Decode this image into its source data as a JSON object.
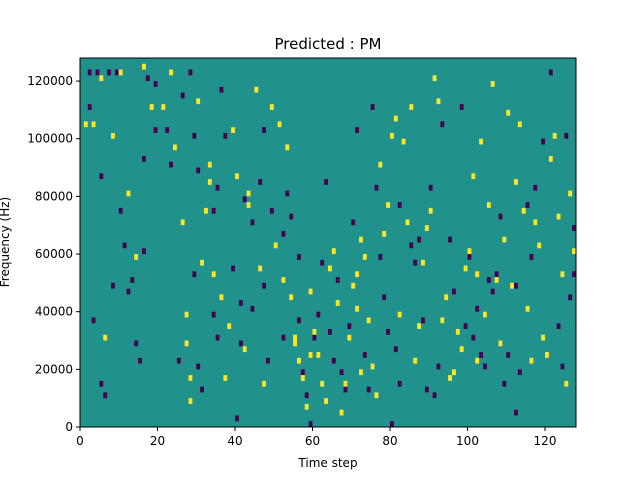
{
  "chart_data": {
    "type": "heatmap",
    "title": "Predicted : PM",
    "xlabel": "Time step",
    "ylabel": "Frequency (Hz)",
    "xlim": [
      0,
      128
    ],
    "ylim": [
      0,
      128000
    ],
    "xticks": [
      0,
      20,
      40,
      60,
      80,
      100,
      120
    ],
    "yticks": [
      0,
      20000,
      40000,
      60000,
      80000,
      100000,
      120000
    ],
    "xtick_labels": [
      "0",
      "20",
      "40",
      "60",
      "80",
      "100",
      "120"
    ],
    "ytick_labels": [
      "0",
      "20000",
      "40000",
      "60000",
      "80000",
      "100000",
      "120000"
    ],
    "time_steps": 128,
    "freq_bins": 64,
    "bin_height_hz": 2000,
    "colors": {
      "background": "#21918c",
      "low": "#440154",
      "high": "#fde725"
    },
    "cells_low": [
      [
        2,
        123000
      ],
      [
        2,
        111000
      ],
      [
        4,
        123000
      ],
      [
        5,
        15000
      ],
      [
        6,
        11000
      ],
      [
        7,
        123000
      ],
      [
        9,
        123000
      ],
      [
        5,
        87000
      ],
      [
        10,
        75000
      ],
      [
        11,
        63000
      ],
      [
        12,
        47000
      ],
      [
        14,
        29000
      ],
      [
        3,
        37000
      ],
      [
        8,
        49000
      ],
      [
        13,
        51000
      ],
      [
        15,
        23000
      ],
      [
        16,
        61000
      ],
      [
        16,
        93000
      ],
      [
        17,
        121000
      ],
      [
        19,
        119000
      ],
      [
        19,
        103000
      ],
      [
        22,
        103000
      ],
      [
        23,
        91000
      ],
      [
        26,
        115000
      ],
      [
        28,
        123000
      ],
      [
        29,
        101000
      ],
      [
        30,
        89000
      ],
      [
        29,
        53000
      ],
      [
        30,
        21000
      ],
      [
        25,
        23000
      ],
      [
        31,
        13000
      ],
      [
        34,
        75000
      ],
      [
        35,
        83000
      ],
      [
        36,
        117000
      ],
      [
        34,
        39000
      ],
      [
        37,
        101000
      ],
      [
        39,
        55000
      ],
      [
        41,
        43000
      ],
      [
        41,
        29000
      ],
      [
        42,
        79000
      ],
      [
        44,
        71000
      ],
      [
        44,
        41000
      ],
      [
        46,
        85000
      ],
      [
        47,
        103000
      ],
      [
        47,
        49000
      ],
      [
        48,
        23000
      ],
      [
        52,
        67000
      ],
      [
        53,
        81000
      ],
      [
        54,
        73000
      ],
      [
        56,
        59000
      ],
      [
        56,
        37000
      ],
      [
        57,
        19000
      ],
      [
        58,
        11000
      ],
      [
        59,
        1000
      ],
      [
        60,
        31000
      ],
      [
        61,
        39000
      ],
      [
        62,
        57000
      ],
      [
        63,
        85000
      ],
      [
        64,
        33000
      ],
      [
        65,
        23000
      ],
      [
        66,
        51000
      ],
      [
        67,
        19000
      ],
      [
        68,
        13000
      ],
      [
        69,
        35000
      ],
      [
        70,
        71000
      ],
      [
        71,
        103000
      ],
      [
        73,
        25000
      ],
      [
        75,
        111000
      ],
      [
        76,
        83000
      ],
      [
        77,
        59000
      ],
      [
        78,
        45000
      ],
      [
        79,
        33000
      ],
      [
        81,
        27000
      ],
      [
        82,
        15000
      ],
      [
        82,
        77000
      ],
      [
        85,
        63000
      ],
      [
        86,
        57000
      ],
      [
        87,
        65000
      ],
      [
        88,
        37000
      ],
      [
        90,
        83000
      ],
      [
        91,
        11000
      ],
      [
        92,
        21000
      ],
      [
        93,
        105000
      ],
      [
        95,
        65000
      ],
      [
        96,
        47000
      ],
      [
        98,
        111000
      ],
      [
        99,
        35000
      ],
      [
        100,
        59000
      ],
      [
        101,
        31000
      ],
      [
        102,
        41000
      ],
      [
        103,
        25000
      ],
      [
        104,
        21000
      ],
      [
        105,
        51000
      ],
      [
        106,
        47000
      ],
      [
        107,
        53000
      ],
      [
        108,
        73000
      ],
      [
        110,
        25000
      ],
      [
        112,
        49000
      ],
      [
        113,
        19000
      ],
      [
        115,
        77000
      ],
      [
        116,
        59000
      ],
      [
        117,
        83000
      ],
      [
        119,
        99000
      ],
      [
        121,
        123000
      ],
      [
        123,
        35000
      ],
      [
        124,
        21000
      ],
      [
        125,
        101000
      ],
      [
        126,
        45000
      ],
      [
        127,
        69000
      ],
      [
        127,
        53000
      ],
      [
        49,
        75000
      ],
      [
        52,
        31000
      ],
      [
        40,
        3000
      ],
      [
        80,
        1000
      ],
      [
        89,
        13000
      ],
      [
        109,
        15000
      ],
      [
        112,
        5000
      ],
      [
        74,
        13000
      ],
      [
        35,
        31000
      ]
    ],
    "cells_high": [
      [
        1,
        105000
      ],
      [
        3,
        105000
      ],
      [
        5,
        121000
      ],
      [
        6,
        31000
      ],
      [
        8,
        101000
      ],
      [
        10,
        123000
      ],
      [
        12,
        81000
      ],
      [
        14,
        59000
      ],
      [
        16,
        125000
      ],
      [
        18,
        111000
      ],
      [
        21,
        111000
      ],
      [
        23,
        123000
      ],
      [
        24,
        97000
      ],
      [
        26,
        71000
      ],
      [
        27,
        39000
      ],
      [
        27,
        29000
      ],
      [
        28,
        17000
      ],
      [
        28,
        9000
      ],
      [
        30,
        113000
      ],
      [
        31,
        57000
      ],
      [
        32,
        75000
      ],
      [
        33,
        85000
      ],
      [
        34,
        53000
      ],
      [
        36,
        45000
      ],
      [
        37,
        17000
      ],
      [
        38,
        35000
      ],
      [
        39,
        103000
      ],
      [
        40,
        87000
      ],
      [
        42,
        27000
      ],
      [
        43,
        81000
      ],
      [
        43,
        77000
      ],
      [
        45,
        117000
      ],
      [
        46,
        55000
      ],
      [
        47,
        15000
      ],
      [
        49,
        111000
      ],
      [
        50,
        63000
      ],
      [
        51,
        105000
      ],
      [
        52,
        51000
      ],
      [
        53,
        97000
      ],
      [
        54,
        45000
      ],
      [
        55,
        29000
      ],
      [
        56,
        23000
      ],
      [
        57,
        17000
      ],
      [
        58,
        7000
      ],
      [
        59,
        47000
      ],
      [
        60,
        33000
      ],
      [
        61,
        25000
      ],
      [
        62,
        15000
      ],
      [
        63,
        9000
      ],
      [
        64,
        55000
      ],
      [
        65,
        61000
      ],
      [
        66,
        43000
      ],
      [
        67,
        5000
      ],
      [
        68,
        15000
      ],
      [
        69,
        31000
      ],
      [
        70,
        49000
      ],
      [
        71,
        53000
      ],
      [
        72,
        65000
      ],
      [
        73,
        59000
      ],
      [
        74,
        37000
      ],
      [
        75,
        21000
      ],
      [
        76,
        11000
      ],
      [
        77,
        91000
      ],
      [
        78,
        67000
      ],
      [
        79,
        77000
      ],
      [
        80,
        101000
      ],
      [
        81,
        107000
      ],
      [
        82,
        39000
      ],
      [
        83,
        99000
      ],
      [
        84,
        71000
      ],
      [
        85,
        111000
      ],
      [
        86,
        23000
      ],
      [
        87,
        35000
      ],
      [
        88,
        57000
      ],
      [
        89,
        69000
      ],
      [
        90,
        75000
      ],
      [
        91,
        121000
      ],
      [
        92,
        113000
      ],
      [
        93,
        37000
      ],
      [
        94,
        45000
      ],
      [
        95,
        17000
      ],
      [
        96,
        19000
      ],
      [
        97,
        33000
      ],
      [
        98,
        27000
      ],
      [
        99,
        55000
      ],
      [
        100,
        61000
      ],
      [
        101,
        87000
      ],
      [
        102,
        23000
      ],
      [
        103,
        99000
      ],
      [
        104,
        39000
      ],
      [
        105,
        77000
      ],
      [
        106,
        119000
      ],
      [
        107,
        51000
      ],
      [
        108,
        29000
      ],
      [
        109,
        65000
      ],
      [
        110,
        109000
      ],
      [
        111,
        49000
      ],
      [
        112,
        85000
      ],
      [
        113,
        105000
      ],
      [
        114,
        75000
      ],
      [
        115,
        41000
      ],
      [
        116,
        23000
      ],
      [
        117,
        71000
      ],
      [
        118,
        63000
      ],
      [
        119,
        31000
      ],
      [
        120,
        25000
      ],
      [
        121,
        93000
      ],
      [
        122,
        101000
      ],
      [
        123,
        73000
      ],
      [
        124,
        53000
      ],
      [
        125,
        15000
      ],
      [
        126,
        81000
      ],
      [
        127,
        61000
      ],
      [
        55,
        31000
      ],
      [
        59,
        25000
      ],
      [
        71,
        41000
      ],
      [
        72,
        19000
      ],
      [
        33,
        91000
      ],
      [
        102,
        53000
      ]
    ]
  }
}
